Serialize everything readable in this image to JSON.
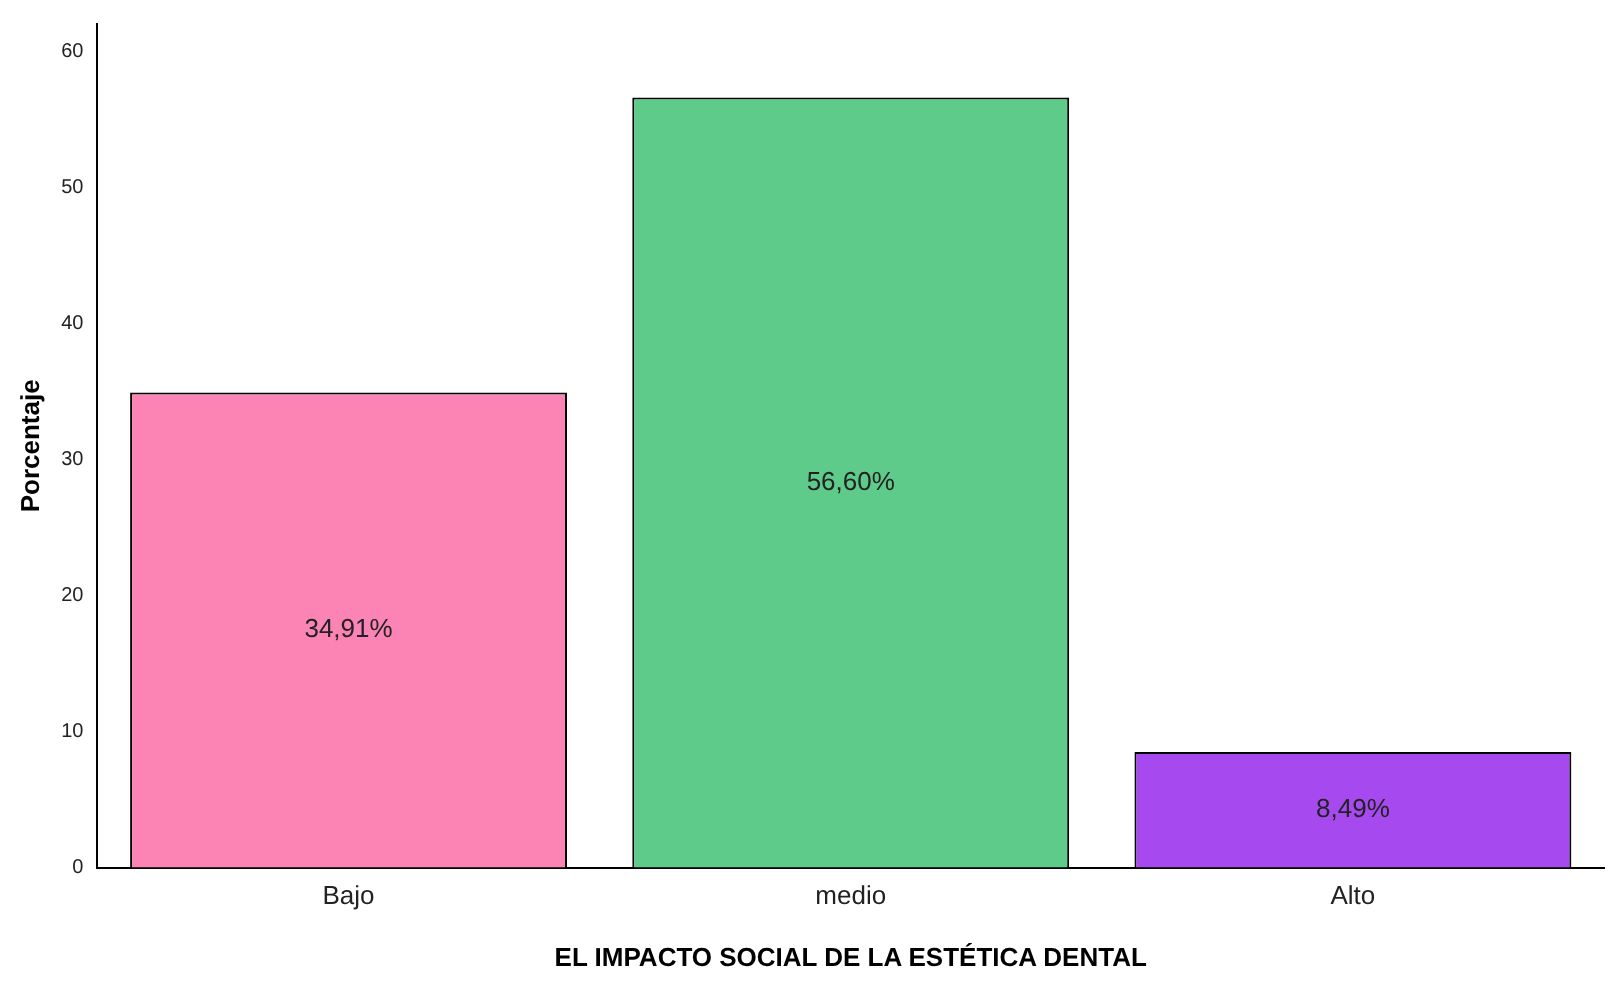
{
  "chart_data": {
    "type": "bar",
    "xlabel": "EL IMPACTO SOCIAL DE LA ESTÉTICA DENTAL",
    "ylabel": "Porcentaje",
    "categories": [
      "Bajo",
      "medio",
      "Alto"
    ],
    "values": [
      34.91,
      56.6,
      8.49
    ],
    "colors": [
      "#fc84b4",
      "#5fcb8b",
      "#a64af0"
    ],
    "value_labels": [
      "34,91%",
      "56,60%",
      "8,49%"
    ],
    "ylim": [
      0,
      62
    ],
    "yticks": [
      0,
      10,
      20,
      30,
      40,
      50,
      60
    ],
    "grid": false,
    "legend": false
  }
}
